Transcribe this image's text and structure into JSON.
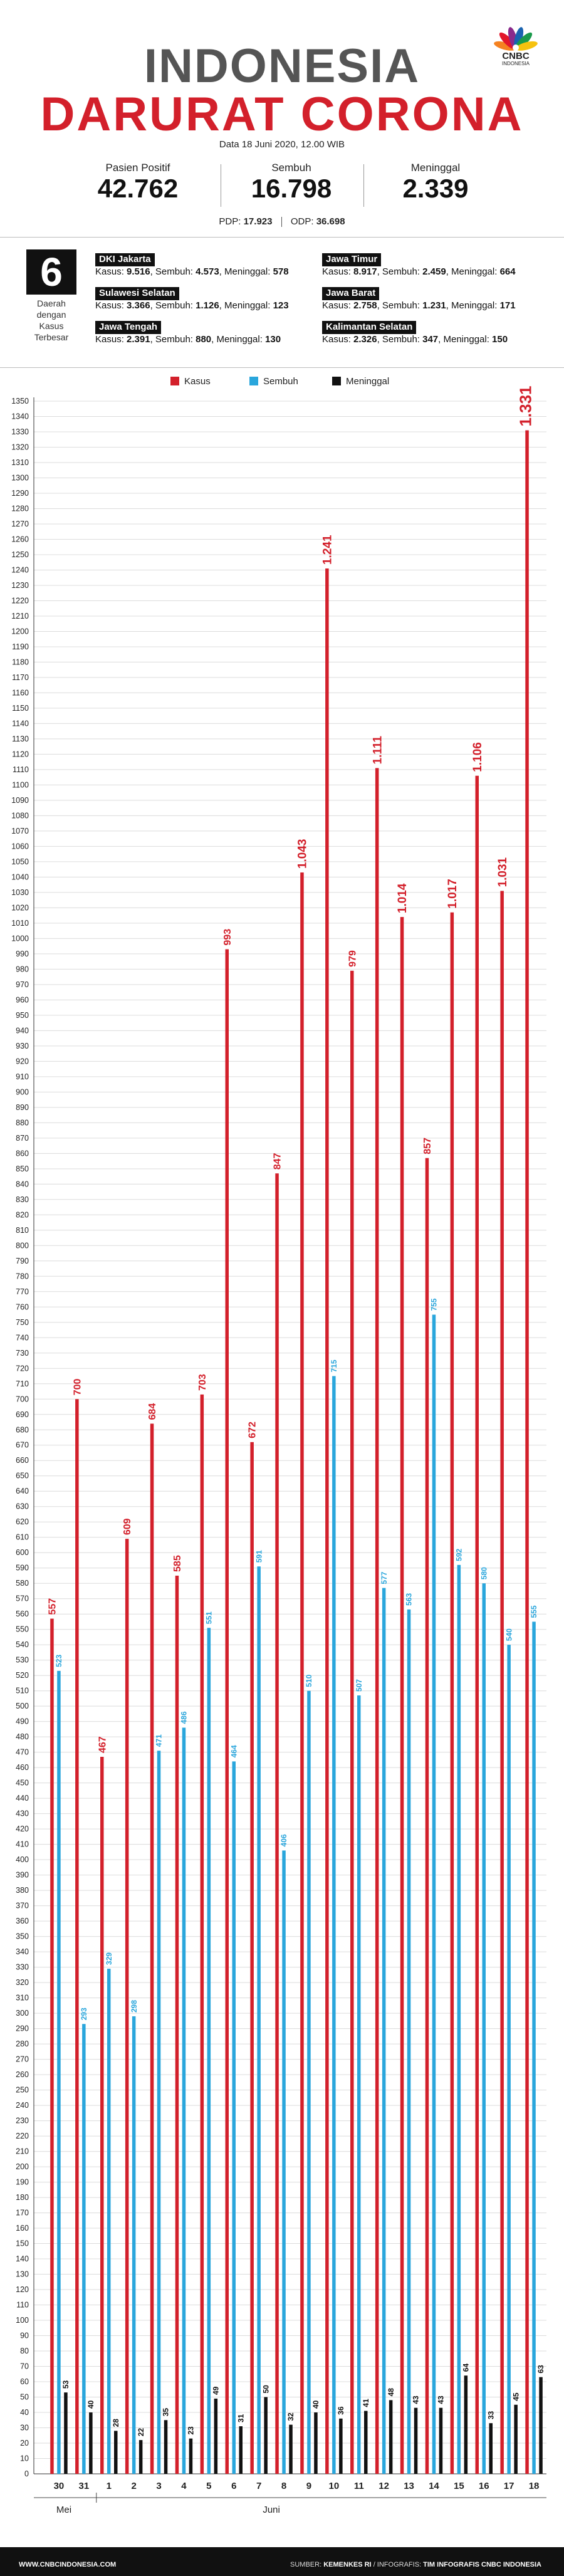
{
  "header": {
    "title_line1": "INDONESIA",
    "title_line2": "DARURAT CORONA",
    "logo_text": "CNBC",
    "logo_sub": "INDONESIA",
    "date": "Data 18 Juni 2020, 12.00 WIB"
  },
  "summary": [
    {
      "label": "Pasien Positif",
      "value": "42.762"
    },
    {
      "label": "Sembuh",
      "value": "16.798"
    },
    {
      "label": "Meninggal",
      "value": "2.339"
    }
  ],
  "pdp": {
    "pdp_label": "PDP:",
    "pdp_value": "17.923",
    "odp_label": "ODP:",
    "odp_value": "36.698"
  },
  "top_regions": {
    "count": "6",
    "caption_lines": [
      "Daerah",
      "dengan",
      "Kasus",
      "Terbesar"
    ],
    "kasus_label": "Kasus:",
    "sembuh_label": "Sembuh:",
    "meninggal_label": "Meninggal:",
    "items": [
      {
        "name": "DKI Jakarta",
        "kasus": "9.516",
        "sembuh": "4.573",
        "meninggal": "578"
      },
      {
        "name": "Sulawesi Selatan",
        "kasus": "3.366",
        "sembuh": "1.126",
        "meninggal": "123"
      },
      {
        "name": "Jawa Tengah",
        "kasus": "2.391",
        "sembuh": "880",
        "meninggal": "130"
      },
      {
        "name": "Jawa Timur",
        "kasus": "8.917",
        "sembuh": "2.459",
        "meninggal": "664"
      },
      {
        "name": "Jawa Barat",
        "kasus": "2.758",
        "sembuh": "1.231",
        "meninggal": "171"
      },
      {
        "name": "Kalimantan Selatan",
        "kasus": "2.326",
        "sembuh": "347",
        "meninggal": "150"
      }
    ]
  },
  "legend": [
    {
      "name": "Kasus",
      "color": "#d3202b"
    },
    {
      "name": "Sembuh",
      "color": "#2aa6dc"
    },
    {
      "name": "Meninggal",
      "color": "#111111"
    }
  ],
  "chart_data": {
    "type": "bar",
    "title": "",
    "xlabel": "",
    "ylabel": "",
    "ylim": [
      0,
      1350
    ],
    "ytick_step": 10,
    "grid": true,
    "categories": [
      "30",
      "31",
      "1",
      "2",
      "3",
      "4",
      "5",
      "6",
      "7",
      "8",
      "9",
      "10",
      "11",
      "12",
      "13",
      "14",
      "15",
      "16",
      "17",
      "18"
    ],
    "month_labels": [
      {
        "label": "Mei",
        "at": 0
      },
      {
        "label": "Juni",
        "at": 8.5
      }
    ],
    "series": [
      {
        "name": "Kasus",
        "color": "#d3202b",
        "values": [
          557,
          700,
          467,
          609,
          684,
          585,
          703,
          993,
          672,
          847,
          1043,
          1241,
          979,
          1111,
          1014,
          857,
          1017,
          1106,
          1031,
          1331
        ],
        "labels": [
          "557",
          "700",
          "467",
          "609",
          "684",
          "585",
          "703",
          "993",
          "672",
          "847",
          "1.043",
          "1.241",
          "979",
          "1.111",
          "1.014",
          "857",
          "1.017",
          "1.106",
          "1.031",
          "1.331"
        ]
      },
      {
        "name": "Sembuh",
        "color": "#2aa6dc",
        "values": [
          523,
          293,
          329,
          298,
          471,
          486,
          551,
          464,
          591,
          406,
          510,
          715,
          507,
          577,
          563,
          755,
          592,
          580,
          540,
          555
        ],
        "labels": [
          "523",
          "293",
          "329",
          "298",
          "471",
          "486",
          "551",
          "464",
          "591",
          "406",
          "510",
          "715",
          "507",
          "577",
          "563",
          "755",
          "592",
          "580",
          "540",
          "555"
        ]
      },
      {
        "name": "Meninggal",
        "color": "#111111",
        "values": [
          53,
          40,
          28,
          22,
          35,
          23,
          49,
          31,
          50,
          32,
          40,
          36,
          41,
          48,
          43,
          43,
          64,
          33,
          45,
          63
        ],
        "labels": [
          "53",
          "40",
          "28",
          "22",
          "35",
          "23",
          "49",
          "31",
          "50",
          "32",
          "40",
          "36",
          "41",
          "48",
          "43",
          "43",
          "64",
          "33",
          "45",
          "63"
        ]
      }
    ]
  },
  "footer": {
    "site": "WWW.CNBCINDONESIA.COM",
    "source_label": "SUMBER:",
    "source": "KEMENKES RI",
    "infografis_label": "/ INFOGRAFIS:",
    "team": "TIM INFOGRAFIS CNBC INDONESIA"
  }
}
